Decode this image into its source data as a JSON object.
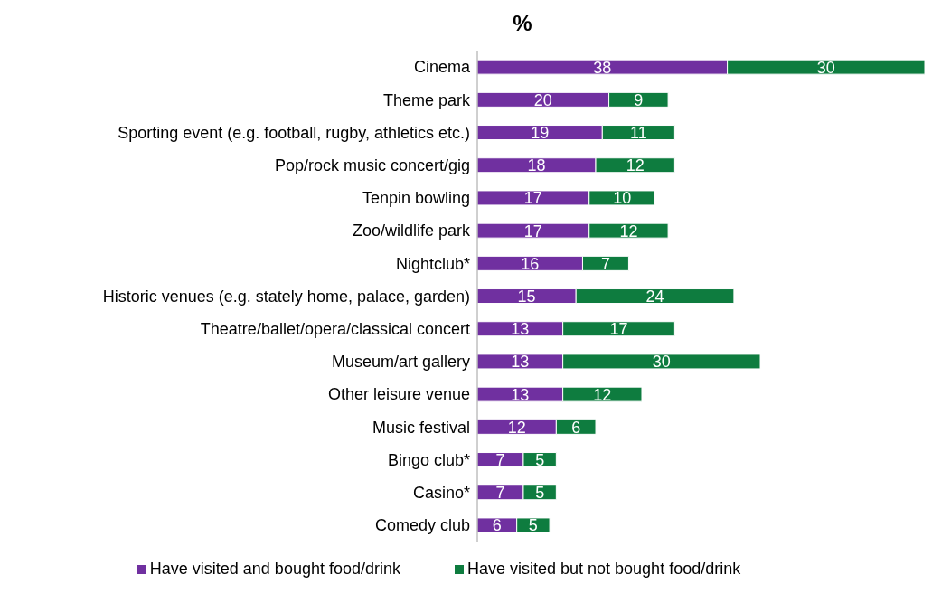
{
  "chart_data": {
    "type": "bar",
    "orientation": "horizontal",
    "stacked": true,
    "title": "%",
    "categories": [
      "Cinema",
      "Theme park",
      "Sporting event (e.g. football, rugby, athletics etc.)",
      "Pop/rock music concert/gig",
      "Tenpin bowling",
      "Zoo/wildlife park",
      "Nightclub*",
      "Historic venues (e.g. stately home, palace, garden)",
      "Theatre/ballet/opera/classical concert",
      "Museum/art gallery",
      "Other leisure venue",
      "Music festival",
      "Bingo club*",
      "Casino*",
      "Comedy club"
    ],
    "series": [
      {
        "name": "Have visited and bought food/drink",
        "color": "#7030a0",
        "values": [
          38,
          20,
          19,
          18,
          17,
          17,
          16,
          15,
          13,
          13,
          13,
          12,
          7,
          7,
          6
        ]
      },
      {
        "name": "Have visited but not bought food/drink",
        "color": "#0e7c3f",
        "values": [
          30,
          9,
          11,
          12,
          10,
          12,
          7,
          24,
          17,
          30,
          12,
          6,
          5,
          5,
          5
        ]
      }
    ],
    "data_labels": true,
    "legend": "bottom",
    "grid": false
  }
}
